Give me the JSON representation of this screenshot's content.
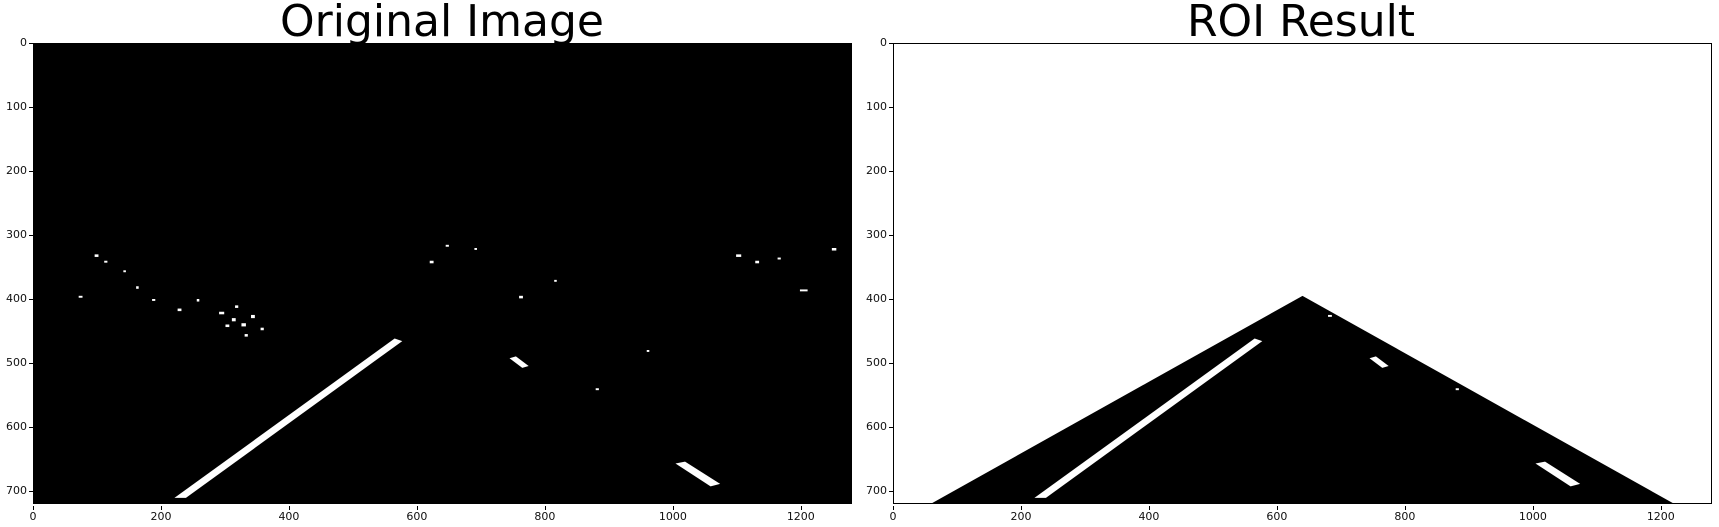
{
  "figures": [
    {
      "title": "Original Image",
      "x_ticks": [
        "0",
        "200",
        "400",
        "600",
        "800",
        "1000",
        "1200"
      ],
      "y_ticks": [
        "0",
        "100",
        "200",
        "300",
        "400",
        "500",
        "600",
        "700"
      ]
    },
    {
      "title": "ROI Result",
      "x_ticks": [
        "0",
        "200",
        "400",
        "600",
        "800",
        "1000",
        "1200"
      ],
      "y_ticks": [
        "0",
        "100",
        "200",
        "300",
        "400",
        "500",
        "600",
        "700"
      ]
    }
  ]
}
